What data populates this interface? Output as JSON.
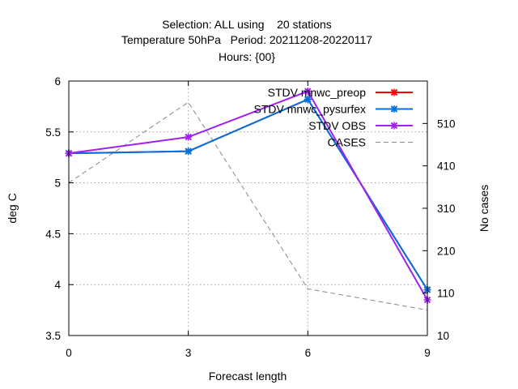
{
  "chart_data": {
    "type": "line",
    "title_lines": [
      "Selection: ALL using    20 stations",
      "Temperature 50hPa   Period: 20211208-20220117",
      "Hours: {00}"
    ],
    "xlabel": "Forecast length",
    "ylabel": "deg C",
    "y2label": "No cases",
    "x": [
      0,
      3,
      6,
      9
    ],
    "xlim": [
      0,
      9
    ],
    "ylim": [
      3.5,
      6
    ],
    "y2lim": [
      10,
      610
    ],
    "x_ticks": [
      0,
      3,
      6,
      9
    ],
    "y_ticks": [
      3.5,
      4,
      4.5,
      5,
      5.5,
      6
    ],
    "y_tick_labels": [
      "3.5",
      "4",
      "4.5",
      "5",
      "5.5",
      "6"
    ],
    "y2_ticks": [
      10,
      110,
      210,
      310,
      410,
      510
    ],
    "grid": true,
    "legend_position": "top-right",
    "series": [
      {
        "name": "STDV mnwc_preop",
        "axis": "y",
        "color": "#ff0000",
        "style": "solid",
        "marker": "x",
        "values": [
          5.29,
          5.31,
          5.82,
          3.95
        ]
      },
      {
        "name": "STDV mnwc_pysurfex",
        "axis": "y",
        "color": "#0072e0",
        "style": "solid",
        "marker": "x",
        "values": [
          5.29,
          5.31,
          5.82,
          3.95
        ]
      },
      {
        "name": "STDV OBS",
        "axis": "y",
        "color": "#a020f0",
        "style": "solid",
        "marker": "x",
        "values": [
          5.29,
          5.45,
          5.9,
          3.85
        ]
      },
      {
        "name": "CASES",
        "axis": "y2",
        "color": "#888888",
        "style": "dashed",
        "marker": "none",
        "values": [
          370,
          560,
          120,
          70
        ]
      }
    ]
  }
}
